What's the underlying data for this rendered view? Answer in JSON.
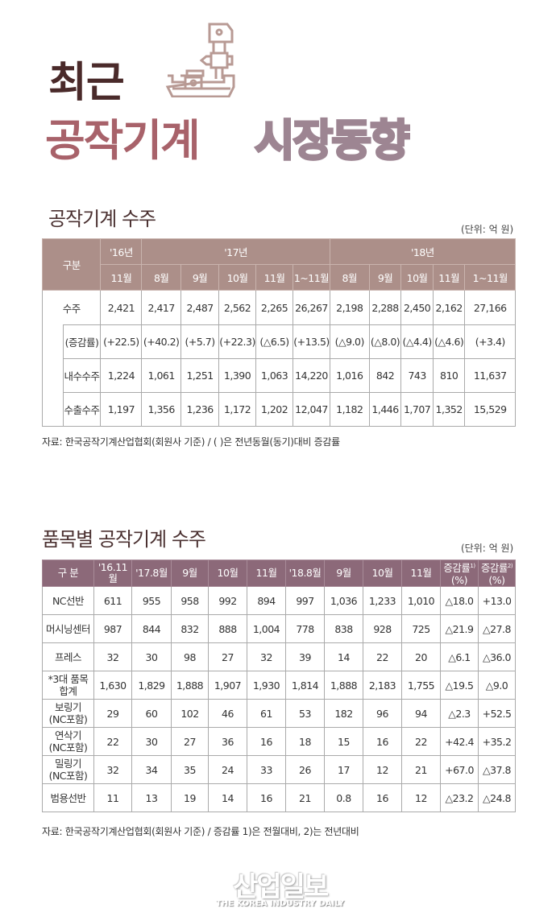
{
  "header": {
    "title_line1": "최근",
    "title_line2a": "공작기계",
    "title_line2b": "시장동향",
    "icon": "machine-tool-icon"
  },
  "section1": {
    "title": "공작기계 수주",
    "unit": "(단위: 억 원)",
    "corner_label": "구분",
    "year_headers": [
      "'16년",
      "'17년",
      "'18년"
    ],
    "month_headers": [
      "11월",
      "8월",
      "9월",
      "10월",
      "11월",
      "1~11월",
      "8월",
      "9월",
      "10월",
      "11월",
      "1~11월"
    ],
    "rows": [
      {
        "label": "수주",
        "values": [
          "2,421",
          "2,417",
          "2,487",
          "2,562",
          "2,265",
          "26,267",
          "2,198",
          "2,288",
          "2,450",
          "2,162",
          "27,166"
        ]
      },
      {
        "label": "(증감률)",
        "values": [
          "(+22.5)",
          "(+40.2)",
          "(+5.7)",
          "(+22.3)",
          "(△6.5)",
          "(+13.5)",
          "(△9.0)",
          "(△8.0)",
          "(△4.4)",
          "(△4.6)",
          "(+3.4)"
        ]
      },
      {
        "label": "내수수주",
        "values": [
          "1,224",
          "1,061",
          "1,251",
          "1,390",
          "1,063",
          "14,220",
          "1,016",
          "842",
          "743",
          "810",
          "11,637"
        ]
      },
      {
        "label": "수출수주",
        "values": [
          "1,197",
          "1,356",
          "1,236",
          "1,172",
          "1,202",
          "12,047",
          "1,182",
          "1,446",
          "1,707",
          "1,352",
          "15,529"
        ]
      }
    ],
    "note": "자료: 한국공작기계산업협회(회원사 기준) / ( )은 전년동월(동기)대비 증감률"
  },
  "section2": {
    "title": "품목별 공작기계 수주",
    "unit": "(단위: 억 원)",
    "headers": [
      "구 분",
      "'16.11월",
      "'17.8월",
      "9월",
      "10월",
      "11월",
      "'18.8월",
      "9월",
      "10월",
      "11월"
    ],
    "rate1_header": "증감률",
    "rate1_sup": "1)",
    "rate2_header": "증감률",
    "rate2_sup": "2)",
    "rate_unit": "(%)",
    "rows": [
      {
        "label": "NC선반",
        "label2": "",
        "values": [
          "611",
          "955",
          "958",
          "992",
          "894",
          "997",
          "1,036",
          "1,233",
          "1,010",
          "△18.0",
          "+13.0"
        ]
      },
      {
        "label": "머시닝센터",
        "label2": "",
        "values": [
          "987",
          "844",
          "832",
          "888",
          "1,004",
          "778",
          "838",
          "928",
          "725",
          "△21.9",
          "△27.8"
        ]
      },
      {
        "label": "프레스",
        "label2": "",
        "values": [
          "32",
          "30",
          "98",
          "27",
          "32",
          "39",
          "14",
          "22",
          "20",
          "△6.1",
          "△36.0"
        ]
      },
      {
        "label": "*3대 품목",
        "label2": "합계",
        "values": [
          "1,630",
          "1,829",
          "1,888",
          "1,907",
          "1,930",
          "1,814",
          "1,888",
          "2,183",
          "1,755",
          "△19.5",
          "△9.0"
        ]
      },
      {
        "label": "보링기",
        "label2": "(NC포함)",
        "values": [
          "29",
          "60",
          "102",
          "46",
          "61",
          "53",
          "182",
          "96",
          "94",
          "△2.3",
          "+52.5"
        ]
      },
      {
        "label": "연삭기",
        "label2": "(NC포함)",
        "values": [
          "22",
          "30",
          "27",
          "36",
          "16",
          "18",
          "15",
          "16",
          "22",
          "+42.4",
          "+35.2"
        ]
      },
      {
        "label": "밀링기",
        "label2": "(NC포함)",
        "values": [
          "32",
          "34",
          "35",
          "24",
          "33",
          "26",
          "17",
          "12",
          "21",
          "+67.0",
          "△37.8"
        ]
      },
      {
        "label": "범용선반",
        "label2": "",
        "values": [
          "11",
          "13",
          "19",
          "14",
          "16",
          "21",
          "0.8",
          "16",
          "12",
          "△23.2",
          "△24.8"
        ]
      }
    ],
    "note": "자료: 한국공작기계산업협회(회원사 기준) / 증감률 1)은 전월대비, 2)는 전년대비"
  },
  "footer": {
    "logo_korean": "산업일보",
    "logo_english": "THE KOREA INDUSTRY DAILY"
  },
  "colors": {
    "title_dark": "#4a2a2a",
    "title_rose": "#a8626a",
    "title_outline": "#9d8592",
    "table1_header": "#ac8f89",
    "table2_header": "#8c6979"
  }
}
